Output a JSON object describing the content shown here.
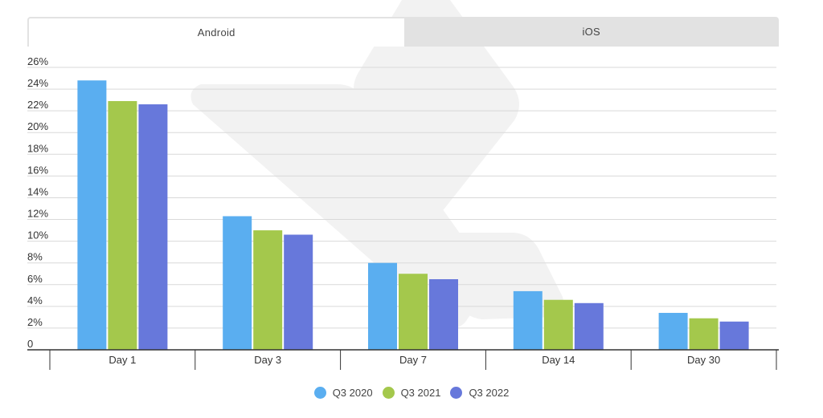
{
  "tabs": [
    {
      "label": "Android",
      "active": true
    },
    {
      "label": "iOS",
      "active": false
    }
  ],
  "colors": {
    "q3_2020": "#5aaef0",
    "q3_2021": "#a4c84c",
    "q3_2022": "#6778db",
    "grid": "#d9d9d9",
    "axis": "#333333"
  },
  "chart_data": {
    "type": "bar",
    "categories": [
      "Day 1",
      "Day 3",
      "Day 7",
      "Day 14",
      "Day 30"
    ],
    "series": [
      {
        "name": "Q3 2020",
        "color": "#5aaef0",
        "values": [
          24.8,
          12.3,
          8.0,
          5.4,
          3.4
        ]
      },
      {
        "name": "Q3 2021",
        "color": "#a4c84c",
        "values": [
          22.9,
          11.0,
          7.0,
          4.6,
          2.9
        ]
      },
      {
        "name": "Q3 2022",
        "color": "#6778db",
        "values": [
          22.6,
          10.6,
          6.5,
          4.3,
          2.6
        ]
      }
    ],
    "yticks": [
      "0",
      "2%",
      "4%",
      "6%",
      "8%",
      "10%",
      "12%",
      "14%",
      "16%",
      "18%",
      "20%",
      "22%",
      "24%",
      "26%"
    ],
    "ylim": [
      0,
      26
    ],
    "grid": true,
    "legend_position": "bottom"
  }
}
